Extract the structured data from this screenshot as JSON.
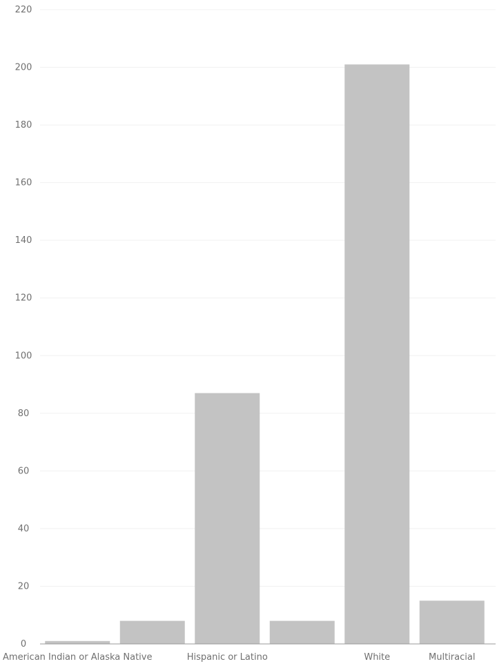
{
  "chart_data": {
    "type": "bar",
    "categories": [
      "American Indian or Alaska Native",
      "",
      "Hispanic or Latino",
      "",
      "White",
      "Multiracial"
    ],
    "values": [
      1,
      8,
      87,
      8,
      201,
      15
    ],
    "ylim": [
      0,
      220
    ],
    "yticks": [
      0,
      20,
      40,
      60,
      80,
      100,
      120,
      140,
      160,
      180,
      200,
      220
    ],
    "grid": true,
    "title": "",
    "xlabel": "",
    "ylabel": "",
    "colors": {
      "bar": "#c3c3c3",
      "grid": "#f0f0f0",
      "axis": "#9a9a9a",
      "tick_text": "#6f6f6f"
    }
  }
}
